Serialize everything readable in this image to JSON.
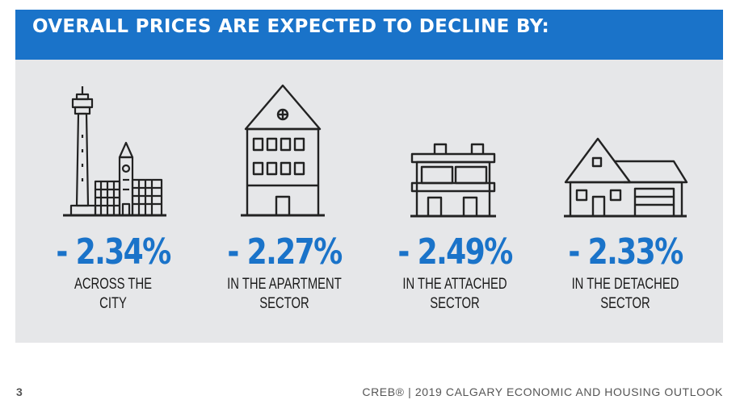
{
  "banner": {
    "title": "OVERALL PRICES ARE EXPECTED TO DECLINE BY:"
  },
  "stats": [
    {
      "value": "- 2.34%",
      "label": "ACROSS THE\nCITY",
      "icon": "city-skyline-icon"
    },
    {
      "value": "- 2.27%",
      "label": "IN THE APARTMENT\nSECTOR",
      "icon": "apartment-building-icon"
    },
    {
      "value": "- 2.49%",
      "label": "IN THE ATTACHED\nSECTOR",
      "icon": "attached-home-icon"
    },
    {
      "value": "- 2.33%",
      "label": "IN THE DETACHED\nSECTOR",
      "icon": "detached-house-icon"
    }
  ],
  "footer": {
    "page_number": "3",
    "text": "CREB® | 2019 CALGARY ECONOMIC AND HOUSING OUTLOOK"
  },
  "colors": {
    "accent": "#1a73c9",
    "panel": "#e6e7e9",
    "text": "#1b1b1b"
  }
}
